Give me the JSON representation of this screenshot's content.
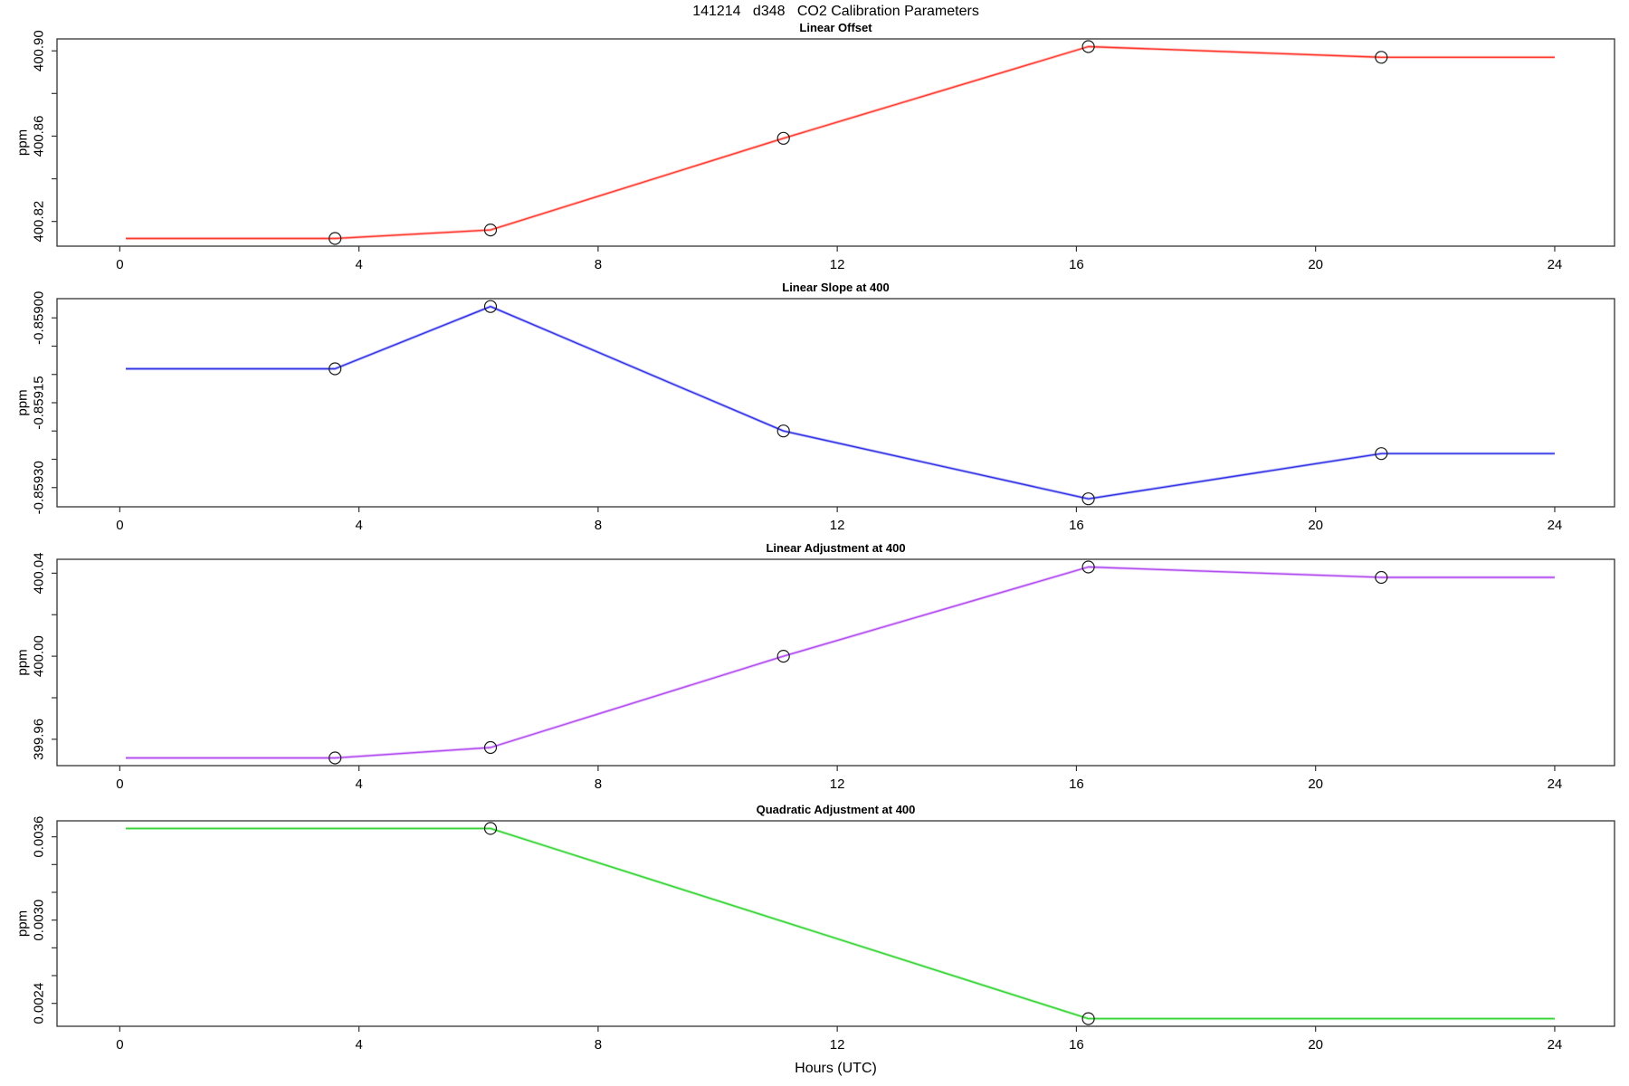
{
  "figure": {
    "title": "141214   d348   CO2 Calibration Parameters",
    "xlabel": "Hours (UTC)",
    "background": "#ffffff",
    "axis_color": "#333333",
    "marker_color": "#1a1a1a",
    "marker_style": "open-circle"
  },
  "chart_data": [
    {
      "type": "line",
      "id": "linear-offset",
      "title": "Linear Offset",
      "ylabel": "ppm",
      "color": "#ff3b30",
      "x": [
        0.1,
        3.6,
        6.2,
        11.1,
        16.2,
        21.1,
        24.0
      ],
      "y": [
        400.812,
        400.812,
        400.816,
        400.859,
        400.902,
        400.897,
        400.897
      ],
      "marker_indices": [
        1,
        2,
        3,
        4,
        5
      ],
      "ylim": [
        400.8084,
        400.9056
      ],
      "yticks": [
        400.82,
        400.84,
        400.86,
        400.88,
        400.9
      ],
      "ytick_labels": [
        "400.82",
        "",
        "400.86",
        "",
        "400.90"
      ],
      "xlim": [
        -1.05,
        25.0
      ],
      "xticks": [
        0,
        4,
        8,
        12,
        16,
        20,
        24
      ],
      "xtick_labels": [
        "0",
        "4",
        "8",
        "12",
        "16",
        "20",
        "24"
      ],
      "grid": "off",
      "legend": "none"
    },
    {
      "type": "line",
      "id": "linear-slope-at-400",
      "title": "Linear Slope at 400",
      "ylabel": "ppm",
      "color": "#3333e6",
      "x": [
        0.1,
        3.6,
        6.2,
        11.1,
        16.2,
        21.1,
        24.0
      ],
      "y": [
        -0.85909,
        -0.85909,
        -0.85898,
        -0.8592,
        -0.85932,
        -0.85924,
        -0.85924
      ],
      "marker_indices": [
        1,
        2,
        3,
        4,
        5
      ],
      "ylim": [
        -0.859334,
        -0.858966
      ],
      "yticks": [
        -0.8593,
        -0.85925,
        -0.8592,
        -0.85915,
        -0.8591,
        -0.85905,
        -0.859
      ],
      "ytick_labels": [
        "-0.85930",
        "",
        "",
        "-0.85915",
        "",
        "",
        "-0.85900"
      ],
      "xlim": [
        -1.05,
        25.0
      ],
      "xticks": [
        0,
        4,
        8,
        12,
        16,
        20,
        24
      ],
      "xtick_labels": [
        "0",
        "4",
        "8",
        "12",
        "16",
        "20",
        "24"
      ],
      "grid": "off",
      "legend": "none"
    },
    {
      "type": "line",
      "id": "linear-adjustment-at-400",
      "title": "Linear Adjustment at 400",
      "ylabel": "ppm",
      "color": "#b24df0",
      "x": [
        0.1,
        3.6,
        6.2,
        11.1,
        16.2,
        21.1,
        24.0
      ],
      "y": [
        399.951,
        399.951,
        399.956,
        400.0,
        400.043,
        400.038,
        400.038
      ],
      "marker_indices": [
        1,
        2,
        3,
        4,
        5
      ],
      "ylim": [
        399.9473,
        400.0467
      ],
      "yticks": [
        399.96,
        399.98,
        400.0,
        400.02,
        400.04
      ],
      "ytick_labels": [
        "399.96",
        "",
        "400.00",
        "",
        "400.04"
      ],
      "xlim": [
        -1.05,
        25.0
      ],
      "xticks": [
        0,
        4,
        8,
        12,
        16,
        20,
        24
      ],
      "xtick_labels": [
        "0",
        "4",
        "8",
        "12",
        "16",
        "20",
        "24"
      ],
      "grid": "off",
      "legend": "none"
    },
    {
      "type": "line",
      "id": "quadratic-adjustment-at-400",
      "title": "Quadratic Adjustment at 400",
      "ylabel": "ppm",
      "color": "#33d433",
      "x": [
        0.1,
        6.2,
        16.2,
        24.0
      ],
      "y": [
        0.00366,
        0.00366,
        0.00229,
        0.00229
      ],
      "marker_indices": [
        1,
        2
      ],
      "ylim": [
        0.002235,
        0.003715
      ],
      "yticks": [
        0.0024,
        0.0026,
        0.0028,
        0.003,
        0.0032,
        0.0034,
        0.0036
      ],
      "ytick_labels": [
        "0.0024",
        "",
        "",
        "0.0030",
        "",
        "",
        "0.0036"
      ],
      "xlim": [
        -1.05,
        25.0
      ],
      "xticks": [
        0,
        4,
        8,
        12,
        16,
        20,
        24
      ],
      "xtick_labels": [
        "0",
        "4",
        "8",
        "12",
        "16",
        "20",
        "24"
      ],
      "grid": "off",
      "legend": "none"
    }
  ]
}
